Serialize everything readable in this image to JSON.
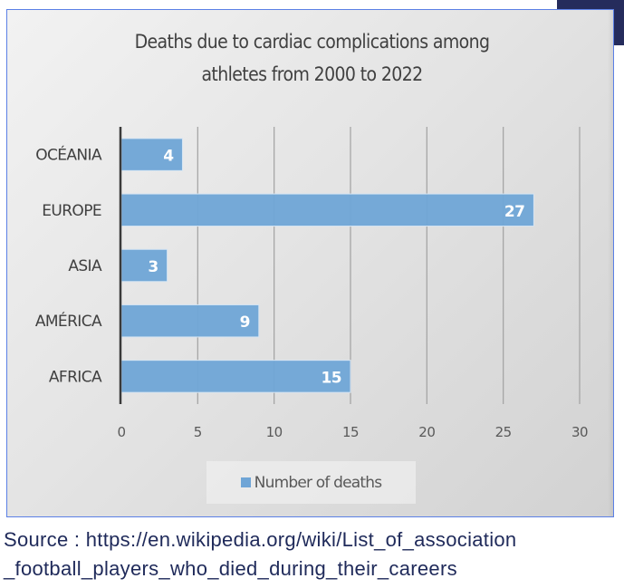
{
  "chart_data": {
    "type": "bar",
    "orientation": "horizontal",
    "title": "Deaths due to cardiac complications among athletes from 2000 to 2022",
    "title_lines": [
      "Deaths due to cardiac complications among",
      "athletes from 2000  to 2022"
    ],
    "categories": [
      "OCÉANIA",
      "EUROPE",
      "ASIA",
      "AMÉRICA",
      "AFRICA"
    ],
    "series": [
      {
        "name": "Number of deaths",
        "values": [
          4,
          27,
          3,
          9,
          15
        ],
        "color": "#6fa5d6"
      }
    ],
    "data_labels": [
      "4",
      "27",
      "3",
      "9",
      "15"
    ],
    "xlabel": "",
    "ylabel": "",
    "xlim": [
      0,
      30
    ],
    "x_ticks": [
      0,
      5,
      10,
      15,
      20,
      25,
      30
    ],
    "x_tick_labels": [
      "0",
      "5",
      "10",
      "15",
      "20",
      "25",
      "30"
    ],
    "grid": "vertical",
    "legend": {
      "position": "bottom",
      "entries": [
        "Number of deaths"
      ]
    }
  },
  "source": {
    "lines": [
      "Source : https://en.wikipedia.org/wiki/List_of_association",
      "_football_players_who_died_during_their_careers"
    ]
  },
  "colors": {
    "bar": "#6fa5d6",
    "panel_border": "#5b80e6",
    "accent_block": "#252c5c",
    "source_text": "#1f2a5a"
  }
}
